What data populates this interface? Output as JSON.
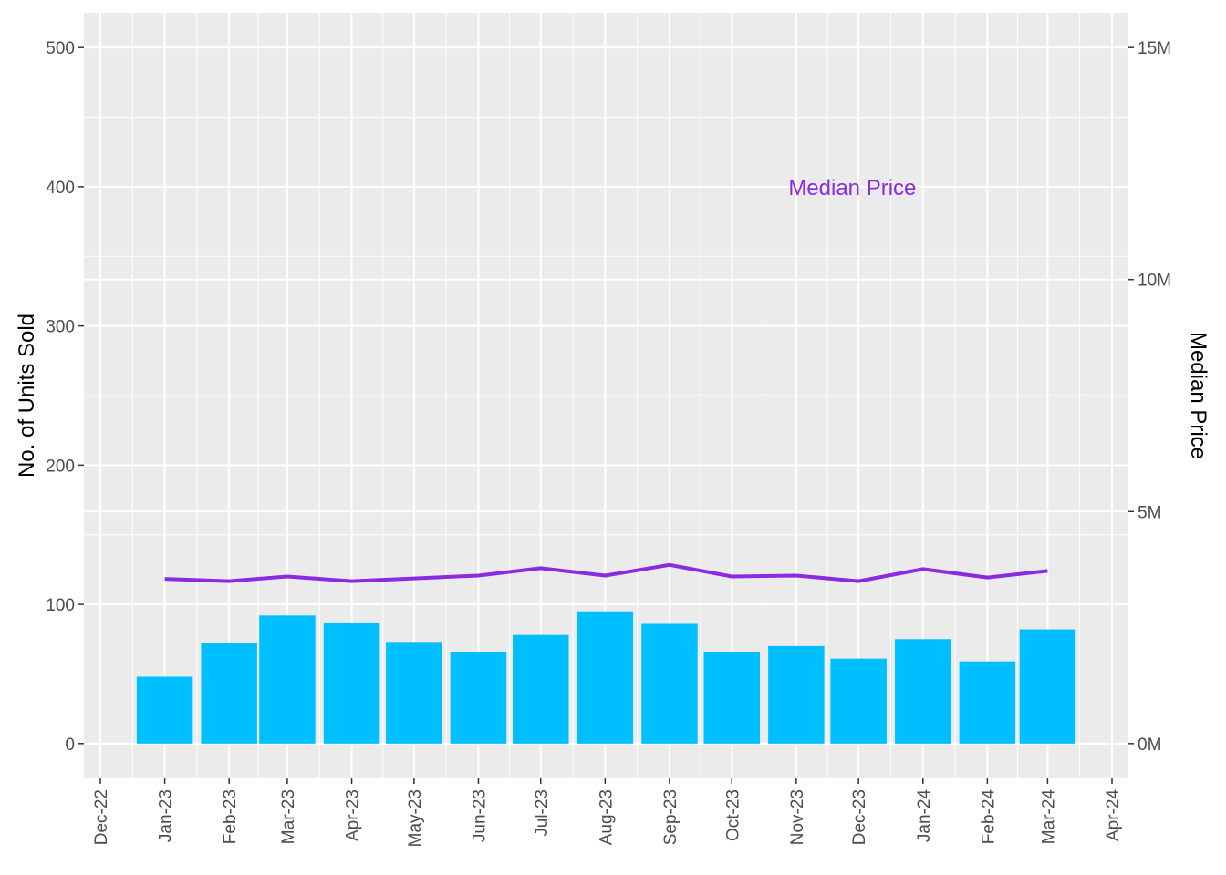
{
  "chart_data": {
    "type": "bar+line",
    "x_tick_labels": [
      "Dec-22",
      "Jan-23",
      "Feb-23",
      "Mar-23",
      "Apr-23",
      "May-23",
      "Jun-23",
      "Jul-23",
      "Aug-23",
      "Sep-23",
      "Oct-23",
      "Nov-23",
      "Dec-23",
      "Jan-24",
      "Feb-24",
      "Mar-24",
      "Apr-24"
    ],
    "x_range": [
      "2022-12-01",
      "2024-04-01"
    ],
    "bars": {
      "x": [
        "2023-01-01",
        "2023-02-01",
        "2023-03-01",
        "2023-04-01",
        "2023-05-01",
        "2023-06-01",
        "2023-07-01",
        "2023-08-01",
        "2023-09-01",
        "2023-10-01",
        "2023-11-01",
        "2023-12-01",
        "2024-01-01",
        "2024-02-01",
        "2024-03-01"
      ],
      "values": [
        48,
        72,
        92,
        87,
        73,
        66,
        78,
        95,
        86,
        66,
        70,
        61,
        75,
        59,
        82
      ],
      "color": "#00bfff"
    },
    "line": {
      "x": [
        "2023-01-01",
        "2023-02-01",
        "2023-03-01",
        "2023-04-01",
        "2023-05-01",
        "2023-06-01",
        "2023-07-01",
        "2023-08-01",
        "2023-09-01",
        "2023-10-01",
        "2023-11-01",
        "2023-12-01",
        "2024-01-01",
        "2024-02-01",
        "2024-03-01"
      ],
      "values": [
        3550000,
        3500000,
        3600000,
        3500000,
        3560000,
        3620000,
        3780000,
        3620000,
        3850000,
        3600000,
        3620000,
        3500000,
        3760000,
        3580000,
        3720000
      ],
      "color": "#8a2be2"
    },
    "annotation": {
      "text": "Median Price",
      "x": "2023-11-28",
      "y": 400,
      "color": "#8a2be2"
    },
    "ylabel_left": "No. of Units Sold",
    "ylabel_right": "Median Price",
    "ylim_left": [
      -25,
      525
    ],
    "y_ticks_left": [
      0,
      100,
      200,
      300,
      400,
      500
    ],
    "y_ticks_right": [
      {
        "label": "0M",
        "value": 0
      },
      {
        "label": "5M",
        "value": 5000000
      },
      {
        "label": "10M",
        "value": 10000000
      },
      {
        "label": "15M",
        "value": 15000000
      }
    ],
    "right_axis_scale_per_unit": 30000,
    "grid": true,
    "panel_background": "#ebebeb"
  }
}
